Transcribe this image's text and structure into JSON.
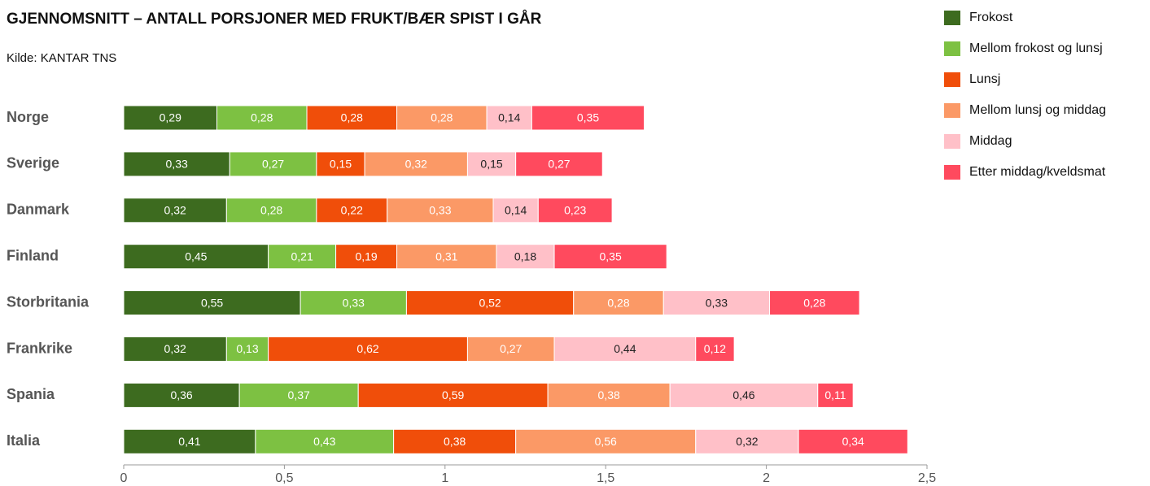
{
  "chart_data": {
    "type": "stacked-barh",
    "title": "GJENNOMSNITT – ANTALL PORSJONER MED FRUKT/BÆR SPIST I GÅR",
    "subtitle": "Kilde: KANTAR TNS",
    "categories": [
      "Norge",
      "Sverige",
      "Danmark",
      "Finland",
      "Storbritania",
      "Frankrike",
      "Spania",
      "Italia"
    ],
    "series": [
      {
        "name": "Frokost",
        "color": "#3d6b1f",
        "values": [
          0.29,
          0.33,
          0.32,
          0.45,
          0.55,
          0.32,
          0.36,
          0.41
        ],
        "value_labels": [
          "0,29",
          "0,33",
          "0,32",
          "0,45",
          "0,55",
          "0,32",
          "0,36",
          "0,41"
        ]
      },
      {
        "name": "Mellom frokost og lunsj",
        "color": "#7dc142",
        "values": [
          0.28,
          0.27,
          0.28,
          0.21,
          0.33,
          0.13,
          0.37,
          0.43
        ],
        "value_labels": [
          "0,28",
          "0,27",
          "0,28",
          "0,21",
          "0,33",
          "0,13",
          "0,37",
          "0,43"
        ]
      },
      {
        "name": "Lunsj",
        "color": "#f04e0a",
        "values": [
          0.28,
          0.15,
          0.22,
          0.19,
          0.52,
          0.62,
          0.59,
          0.38
        ],
        "value_labels": [
          "0,28",
          "0,15",
          "0,22",
          "0,19",
          "0,52",
          "0,62",
          "0,59",
          "0,38"
        ]
      },
      {
        "name": "Mellom lunsj og middag",
        "color": "#fb9966",
        "values": [
          0.28,
          0.32,
          0.33,
          0.31,
          0.28,
          0.27,
          0.38,
          0.56
        ],
        "value_labels": [
          "0,28",
          "0,32",
          "0,33",
          "0,31",
          "0,28",
          "0,27",
          "0,38",
          "0,56"
        ]
      },
      {
        "name": "Middag",
        "color": "#ffc0c8",
        "values": [
          0.14,
          0.15,
          0.14,
          0.18,
          0.33,
          0.44,
          0.46,
          0.32
        ],
        "value_labels": [
          "0,14",
          "0,15",
          "0,14",
          "0,18",
          "0,33",
          "0,44",
          "0,46",
          "0,32"
        ]
      },
      {
        "name": "Etter middag/kveldsmat",
        "color": "#ff4a5e",
        "values": [
          0.35,
          0.27,
          0.23,
          0.35,
          0.28,
          0.12,
          0.11,
          0.34
        ],
        "value_labels": [
          "0,35",
          "0,27",
          "0,23",
          "0,35",
          "0,28",
          "0,12",
          "0,11",
          "0,34"
        ]
      }
    ],
    "xlim": [
      0,
      2.5
    ],
    "xticks": [
      0,
      {
        "value": 0.5,
        "label": "0,5"
      },
      1,
      {
        "value": 1.5,
        "label": "1,5"
      },
      2,
      {
        "value": 2.5,
        "label": "2,5"
      }
    ],
    "legend": "right"
  }
}
